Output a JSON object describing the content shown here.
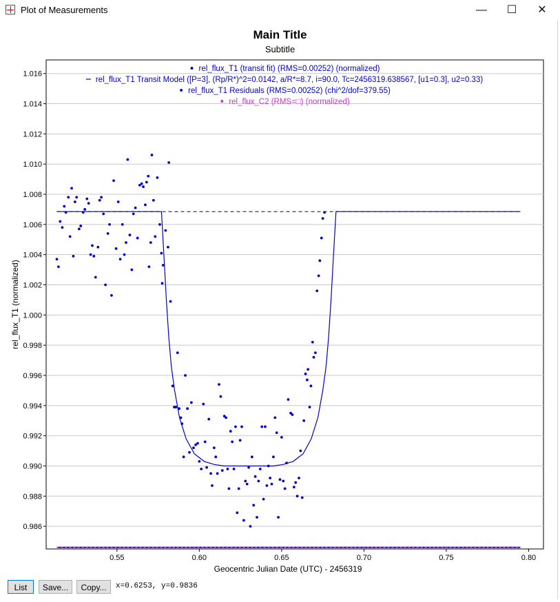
{
  "window": {
    "title": "Plot of Measurements",
    "minimize_glyph": "—",
    "maximize_glyph": "☐",
    "close_glyph": "✕"
  },
  "chart_data": {
    "type": "scatter",
    "title": "Main Title",
    "subtitle": "Subtitle",
    "xlabel": "Geocentric Julian Date (UTC) - 2456319",
    "ylabel": "rel_flux_T1 (normalized)",
    "xlim": [
      0.507,
      0.809
    ],
    "ylim": [
      0.9845,
      1.0169
    ],
    "x_ticks": [
      0.55,
      0.6,
      0.65,
      0.7,
      0.75,
      0.8
    ],
    "x_tick_labels": [
      "0.55",
      "0.60",
      "0.65",
      "0.70",
      "0.75",
      "0.80"
    ],
    "y_ticks": [
      0.986,
      0.988,
      0.99,
      0.992,
      0.994,
      0.996,
      0.998,
      1.0,
      1.002,
      1.004,
      1.006,
      1.008,
      1.01,
      1.012,
      1.014,
      1.016
    ],
    "y_tick_labels": [
      "0.986",
      "0.988",
      "0.990",
      "0.992",
      "0.994",
      "0.996",
      "0.998",
      "1.000",
      "1.002",
      "1.004",
      "1.006",
      "1.008",
      "1.010",
      "1.012",
      "1.014",
      "1.016"
    ],
    "grid": true,
    "legend_placement": "top-center",
    "legend": [
      {
        "marker": "dot",
        "label": "rel_flux_T1 (transit fit) (RMS=0.00252) (normalized)",
        "color": "#0000cc"
      },
      {
        "marker": "line",
        "label": "rel_flux_T1 Transit Model ([P=3], (Rp/R*)^2=0.0142, a/R*=8.7, i=90.0, Tc=2456319.638567, [u1=0.3], u2=0.33)",
        "color": "#0000cc"
      },
      {
        "marker": "dot",
        "label": "rel_flux_T1 Residuals (RMS=0.00252) (chi^2/dof=379.55)",
        "color": "#0000cc"
      },
      {
        "marker": "dot",
        "label": "rel_flux_C2 (RMS=□) (normalized)",
        "color": "#cc33cc"
      }
    ],
    "series": [
      {
        "name": "rel_flux_T1 (transit fit) (RMS=0.00252) (normalized)",
        "color": "#0000cc",
        "points": [
          [
            0.5135,
            1.0037
          ],
          [
            0.5145,
            1.0032
          ],
          [
            0.5155,
            1.0062
          ],
          [
            0.5168,
            1.0058
          ],
          [
            0.518,
            1.0072
          ],
          [
            0.519,
            1.0068
          ],
          [
            0.5205,
            1.0078
          ],
          [
            0.5215,
            1.0052
          ],
          [
            0.5225,
            1.0084
          ],
          [
            0.5235,
            1.0039
          ],
          [
            0.5245,
            1.0075
          ],
          [
            0.5255,
            1.0078
          ],
          [
            0.527,
            1.0057
          ],
          [
            0.528,
            1.0059
          ],
          [
            0.5295,
            1.0068
          ],
          [
            0.5305,
            1.007
          ],
          [
            0.5318,
            1.0077
          ],
          [
            0.5328,
            1.0074
          ],
          [
            0.534,
            1.004
          ],
          [
            0.535,
            1.0046
          ],
          [
            0.536,
            1.0039
          ],
          [
            0.537,
            1.0025
          ],
          [
            0.5385,
            1.0045
          ],
          [
            0.5395,
            1.0076
          ],
          [
            0.5405,
            1.0078
          ],
          [
            0.5418,
            1.0067
          ],
          [
            0.543,
            1.002
          ],
          [
            0.5445,
            1.0054
          ],
          [
            0.5455,
            1.006
          ],
          [
            0.5467,
            1.0013
          ],
          [
            0.548,
            1.0089
          ],
          [
            0.5495,
            1.0044
          ],
          [
            0.5508,
            1.0075
          ],
          [
            0.552,
            1.0037
          ],
          [
            0.5533,
            1.006
          ],
          [
            0.5545,
            1.004
          ],
          [
            0.5555,
            1.0048
          ],
          [
            0.5565,
            1.0103
          ],
          [
            0.5578,
            1.0053
          ],
          [
            0.559,
            1.003
          ],
          [
            0.56,
            1.0067
          ],
          [
            0.5612,
            1.0071
          ],
          [
            0.5625,
            1.0051
          ],
          [
            0.5638,
            1.0086
          ],
          [
            0.565,
            1.0087
          ],
          [
            0.566,
            1.0085
          ],
          [
            0.5672,
            1.0073
          ],
          [
            0.568,
            1.0088
          ],
          [
            0.569,
            1.0092
          ],
          [
            0.5695,
            1.0032
          ],
          [
            0.5705,
            1.0048
          ],
          [
            0.5712,
            1.0106
          ],
          [
            0.5722,
            1.0076
          ],
          [
            0.5732,
            1.0052
          ],
          [
            0.5745,
            1.0091
          ],
          [
            0.576,
            1.006
          ],
          [
            0.577,
            1.0041
          ],
          [
            0.5775,
            1.0021
          ],
          [
            0.578,
            1.0033
          ],
          [
            0.5795,
            1.0056
          ],
          [
            0.581,
            1.0045
          ],
          [
            0.5815,
            1.0101
          ],
          [
            0.5825,
            1.0009
          ],
          [
            0.5838,
            0.9953
          ],
          [
            0.5848,
            0.9939
          ],
          [
            0.5858,
            0.9939
          ],
          [
            0.5868,
            0.9975
          ],
          [
            0.5878,
            0.9938
          ],
          [
            0.5888,
            0.9932
          ],
          [
            0.5895,
            0.9928
          ],
          [
            0.5905,
            0.9906
          ],
          [
            0.5915,
            0.996
          ],
          [
            0.5928,
            0.9938
          ],
          [
            0.594,
            0.9909
          ],
          [
            0.5952,
            0.9942
          ],
          [
            0.5965,
            0.9912
          ],
          [
            0.5978,
            0.9914
          ],
          [
            0.599,
            0.9915
          ],
          [
            0.6,
            0.9903
          ],
          [
            0.6012,
            0.9898
          ],
          [
            0.6025,
            0.9941
          ],
          [
            0.6035,
            0.9916
          ],
          [
            0.6045,
            0.9899
          ],
          [
            0.6058,
            0.9931
          ],
          [
            0.607,
            0.9895
          ],
          [
            0.6078,
            0.9887
          ],
          [
            0.609,
            0.9912
          ],
          [
            0.61,
            0.9906
          ],
          [
            0.611,
            0.9895
          ],
          [
            0.612,
            0.9954
          ],
          [
            0.613,
            0.9946
          ],
          [
            0.614,
            0.9897
          ],
          [
            0.6152,
            0.9933
          ],
          [
            0.6162,
            0.9932
          ],
          [
            0.6172,
            0.9898
          ],
          [
            0.618,
            0.9885
          ],
          [
            0.619,
            0.9923
          ],
          [
            0.62,
            0.9916
          ],
          [
            0.621,
            0.9898
          ],
          [
            0.622,
            0.9926
          ],
          [
            0.623,
            0.9869
          ],
          [
            0.624,
            0.9885
          ],
          [
            0.6248,
            0.9917
          ],
          [
            0.6258,
            0.9926
          ],
          [
            0.627,
            0.9864
          ],
          [
            0.628,
            0.989
          ],
          [
            0.629,
            0.9888
          ],
          [
            0.63,
            0.9899
          ],
          [
            0.631,
            0.986
          ],
          [
            0.632,
            0.9906
          ],
          [
            0.633,
            0.9874
          ],
          [
            0.634,
            0.9893
          ],
          [
            0.635,
            0.9866
          ],
          [
            0.636,
            0.989
          ],
          [
            0.637,
            0.9898
          ],
          [
            0.638,
            0.9926
          ],
          [
            0.639,
            0.9878
          ],
          [
            0.64,
            0.9926
          ],
          [
            0.641,
            0.9887
          ],
          [
            0.642,
            0.99
          ],
          [
            0.643,
            0.9892
          ],
          [
            0.644,
            0.9888
          ],
          [
            0.645,
            0.9906
          ],
          [
            0.646,
            0.9932
          ],
          [
            0.647,
            0.9922
          ],
          [
            0.648,
            0.9866
          ],
          [
            0.649,
            0.9891
          ],
          [
            0.65,
            0.9919
          ],
          [
            0.651,
            0.989
          ],
          [
            0.652,
            0.9885
          ],
          [
            0.653,
            0.9902
          ],
          [
            0.654,
            0.9944
          ],
          [
            0.6555,
            0.9935
          ],
          [
            0.6565,
            0.9934
          ],
          [
            0.6575,
            0.9886
          ],
          [
            0.6585,
            0.9889
          ],
          [
            0.6595,
            0.988
          ],
          [
            0.6605,
            0.9892
          ],
          [
            0.6615,
            0.991
          ],
          [
            0.6625,
            0.9879
          ],
          [
            0.6635,
            0.993
          ],
          [
            0.6645,
            0.9961
          ],
          [
            0.6655,
            0.9957
          ],
          [
            0.666,
            0.9964
          ],
          [
            0.667,
            0.9939
          ],
          [
            0.6678,
            0.9953
          ],
          [
            0.6688,
            0.9982
          ],
          [
            0.6695,
            0.9972
          ],
          [
            0.6705,
            0.9975
          ],
          [
            0.6715,
            1.0016
          ],
          [
            0.6725,
            1.0026
          ],
          [
            0.6732,
            1.0036
          ],
          [
            0.6742,
            1.0051
          ],
          [
            0.675,
            1.0064
          ],
          [
            0.676,
            1.0068
          ]
        ]
      },
      {
        "name": "rel_flux_T1 Transit Model ([P=3], (Rp/R*)^2=0.0142, a/R*=8.7, i=90.0, Tc=2456319.638567, [u1=0.3], u2=0.33)",
        "color": "#0000cc",
        "points": [
          [
            0.5135,
            1.00685
          ],
          [
            0.577,
            1.00685
          ],
          [
            0.5785,
            1.004
          ],
          [
            0.58,
            1.001
          ],
          [
            0.5815,
            0.9985
          ],
          [
            0.583,
            0.9966
          ],
          [
            0.585,
            0.995
          ],
          [
            0.588,
            0.9932
          ],
          [
            0.592,
            0.9918
          ],
          [
            0.597,
            0.9908
          ],
          [
            0.603,
            0.9903
          ],
          [
            0.609,
            0.9901
          ],
          [
            0.615,
            0.99
          ],
          [
            0.621,
            0.99
          ],
          [
            0.627,
            0.99
          ],
          [
            0.633,
            0.99
          ],
          [
            0.639,
            0.99
          ],
          [
            0.645,
            0.99
          ],
          [
            0.651,
            0.9901
          ],
          [
            0.657,
            0.9903
          ],
          [
            0.663,
            0.9908
          ],
          [
            0.668,
            0.9918
          ],
          [
            0.672,
            0.9932
          ],
          [
            0.675,
            0.995
          ],
          [
            0.677,
            0.9966
          ],
          [
            0.6785,
            0.9985
          ],
          [
            0.68,
            1.001
          ],
          [
            0.6815,
            1.004
          ],
          [
            0.683,
            1.00685
          ],
          [
            0.795,
            1.00685
          ]
        ]
      },
      {
        "name": "rel_flux_T1 Residuals (RMS=0.00252) (chi^2/dof=379.55)",
        "color": "#0000cc",
        "points": []
      },
      {
        "name": "rel_flux_C2 (RMS=□) (normalized)",
        "color": "#cc33cc",
        "points": []
      }
    ],
    "baseline_dashed": {
      "y": 1.00685,
      "x": [
        0.5135,
        0.795
      ],
      "color": "#000066"
    },
    "bottom_band": {
      "y": 0.9846,
      "x": [
        0.5135,
        0.795
      ],
      "color_a": "#cc33cc",
      "color_b": "#0000cc"
    }
  },
  "bottom_bar": {
    "list_label": "List",
    "save_label": "Save...",
    "copy_label": "Copy...",
    "cursor_readout": "x=0.6253, y=0.9836"
  }
}
